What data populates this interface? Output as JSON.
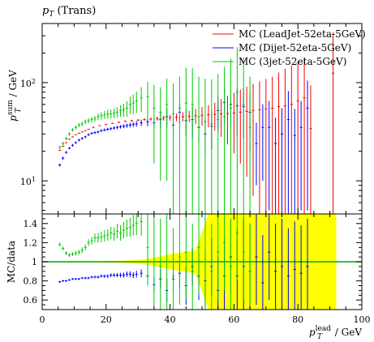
{
  "title": "p_T (Trans)",
  "title_parts": {
    "main": "p",
    "sub": "T",
    "tail": " (Trans)"
  },
  "chart_data": [
    {
      "type": "scatter",
      "panel": "main",
      "ylabel": "p_T^sum / GeV",
      "ylabel_parts": {
        "main": "p",
        "sup": "sum",
        "sub": "T",
        "tail": " / GeV"
      },
      "yscale": "log",
      "ylim": [
        4.6,
        400
      ],
      "xlim": [
        0,
        100
      ],
      "y_tick_labels": [
        "10^1",
        "10^2"
      ],
      "legend_position": "top-right",
      "series": [
        {
          "name": "MC (LeadJet-52eta-5GeV)",
          "color": "#ff0000",
          "x": [
            5.5,
            6.5,
            7.5,
            8.5,
            9.5,
            10.5,
            11.5,
            12.5,
            13.5,
            14.5,
            16,
            18,
            20,
            22,
            24,
            26,
            28,
            30,
            32,
            34,
            36,
            38,
            40,
            42,
            44,
            46,
            48,
            50,
            52,
            54,
            56,
            58,
            60,
            62,
            64,
            66,
            68,
            70,
            72,
            74,
            76,
            78,
            80,
            82,
            84,
            91
          ],
          "y": [
            20.5,
            22.5,
            24.5,
            26.5,
            28,
            29.5,
            30.5,
            31.5,
            32.5,
            33.5,
            35,
            36.5,
            37.5,
            38.5,
            39.5,
            40.5,
            41,
            41.5,
            42,
            42.5,
            43,
            43.5,
            44,
            44.5,
            45,
            45.5,
            46,
            46.5,
            47,
            47.5,
            48,
            48.5,
            49,
            50,
            51,
            52,
            53,
            54,
            55,
            57,
            58,
            60,
            65,
            70,
            34,
            125
          ],
          "err": [
            0.3,
            0.3,
            0.3,
            0.3,
            0.3,
            0.3,
            0.3,
            0.3,
            0.3,
            0.3,
            0.4,
            0.4,
            0.5,
            0.5,
            0.6,
            0.7,
            0.8,
            1,
            1.2,
            1.5,
            2,
            2.5,
            3,
            4,
            5,
            6,
            8,
            10,
            12,
            15,
            20,
            25,
            30,
            35,
            40,
            45,
            50,
            55,
            60,
            70,
            80,
            90,
            100,
            110,
            60,
            200
          ]
        },
        {
          "name": "MC (Dijet-52eta-5GeV)",
          "color": "#0000ff",
          "x": [
            5.5,
            6.5,
            7.5,
            8.5,
            9.5,
            10.5,
            11.5,
            12.5,
            13.5,
            14.5,
            15.5,
            16.5,
            17.5,
            18.5,
            19.5,
            20.5,
            21.5,
            22.5,
            23.5,
            24.5,
            25.5,
            26.5,
            27.5,
            28.5,
            29.5,
            31,
            33,
            35,
            37,
            39,
            41,
            43,
            45,
            47,
            49,
            51,
            53,
            55,
            57,
            59,
            61,
            63,
            65,
            67,
            69,
            71,
            73,
            75,
            77,
            79,
            81,
            83
          ],
          "y": [
            14.5,
            17,
            19.5,
            21.5,
            23,
            24.5,
            26,
            27,
            28,
            29.5,
            30.5,
            31,
            31.5,
            32.5,
            33,
            33.5,
            34,
            34.5,
            35,
            35.5,
            36,
            36.5,
            37,
            37.5,
            38,
            39,
            40,
            39,
            42,
            45,
            37,
            50,
            41,
            42,
            35,
            30,
            36,
            52,
            63,
            60,
            58,
            57,
            50,
            24,
            35,
            35,
            24,
            30,
            42,
            29,
            35,
            55
          ],
          "err": [
            0.5,
            0.6,
            0.6,
            0.6,
            0.7,
            0.7,
            0.8,
            0.8,
            0.8,
            0.9,
            0.9,
            1,
            1,
            1.1,
            1.1,
            1.2,
            1.2,
            1.3,
            1.4,
            1.5,
            1.6,
            1.8,
            2,
            2.2,
            2.5,
            3,
            4,
            5,
            8,
            10,
            8,
            12,
            12,
            15,
            10,
            12,
            15,
            20,
            25,
            25,
            30,
            30,
            30,
            15,
            25,
            30,
            20,
            25,
            40,
            25,
            30,
            50
          ]
        },
        {
          "name": "MC (3jet-52eta-5GeV)",
          "color": "#00cc00",
          "x": [
            5.5,
            6.5,
            7.5,
            8.5,
            9.5,
            10.5,
            11.5,
            12.5,
            13.5,
            14.5,
            15.5,
            16.5,
            17.5,
            18.5,
            19.5,
            20.5,
            21.5,
            22.5,
            23.5,
            24.5,
            25.5,
            26.5,
            27.5,
            28.5,
            29.5,
            31,
            33,
            35,
            37,
            39,
            41,
            43,
            45,
            47,
            49,
            51,
            53,
            55,
            57,
            59,
            61,
            63,
            65
          ],
          "y": [
            22,
            24,
            27,
            30,
            33,
            35,
            37,
            38,
            40,
            41,
            42,
            43,
            45,
            46,
            47,
            48,
            48,
            49,
            50,
            52,
            53,
            55,
            60,
            62,
            65,
            70,
            72,
            55,
            50,
            60,
            48,
            55,
            62,
            60,
            45,
            40,
            38,
            42,
            45,
            55,
            80,
            60,
            35
          ],
          "err": [
            0.8,
            1,
            1.1,
            1.2,
            1.4,
            1.6,
            1.8,
            2,
            2.2,
            2.5,
            2.8,
            3,
            3.5,
            4,
            4.5,
            5,
            5,
            5.5,
            6,
            7,
            8,
            10,
            12,
            14,
            16,
            20,
            30,
            40,
            40,
            50,
            50,
            60,
            80,
            80,
            70,
            70,
            70,
            80,
            100,
            120,
            150,
            120,
            80
          ]
        }
      ]
    },
    {
      "type": "scatter",
      "panel": "ratio",
      "ylabel": "MC/data",
      "xlabel": "p_T^lead / GeV",
      "xlabel_parts": {
        "main": "p",
        "sup": "lead",
        "sub": "T",
        "tail": " / GeV"
      },
      "xlim": [
        0,
        100
      ],
      "ylim": [
        0.5,
        1.5
      ],
      "x_ticks": [
        0,
        20,
        40,
        60,
        80,
        100
      ],
      "y_ticks": [
        0.6,
        0.8,
        1,
        1.2,
        1.4
      ],
      "reference_line": 1,
      "band_color": "#ffff00",
      "reference_line_color": "#00aa00",
      "band": {
        "x": [
          5,
          25,
          30,
          33,
          36,
          40,
          44,
          48,
          52,
          56,
          60,
          64,
          68,
          72,
          76,
          80,
          84,
          92
        ],
        "half_width": [
          0.005,
          0.01,
          0.02,
          0.03,
          0.05,
          0.08,
          0.1,
          0.12,
          0.5,
          0.5,
          0.5,
          0.5,
          0.5,
          0.5,
          0.5,
          0.5,
          0.5,
          0.5
        ]
      },
      "series": [
        {
          "color": "#0000ff",
          "x": [
            5.5,
            6.5,
            7.5,
            8.5,
            9.5,
            10.5,
            11.5,
            12.5,
            13.5,
            14.5,
            15.5,
            16.5,
            17.5,
            18.5,
            19.5,
            20.5,
            21.5,
            22.5,
            23.5,
            24.5,
            25.5,
            26.5,
            27.5,
            28.5,
            29.5,
            31,
            33,
            35,
            37,
            39,
            41,
            43,
            45,
            47,
            49,
            51,
            53,
            55,
            57,
            59,
            61,
            63,
            65,
            67,
            69,
            71,
            73,
            75,
            77,
            79,
            81,
            83
          ],
          "y": [
            0.79,
            0.8,
            0.8,
            0.81,
            0.82,
            0.82,
            0.82,
            0.83,
            0.83,
            0.83,
            0.84,
            0.84,
            0.84,
            0.85,
            0.85,
            0.85,
            0.86,
            0.86,
            0.86,
            0.86,
            0.86,
            0.87,
            0.87,
            0.86,
            0.87,
            0.88,
            0.85,
            0.76,
            0.82,
            0.7,
            0.82,
            0.88,
            0.75,
            0.95,
            0.85,
            0.8,
            0.95,
            0.7,
            0.85,
            1.05,
            0.85,
            0.95,
            0.9,
            1.05,
            0.78,
            1.1,
            0.9,
            0.95,
            0.85,
            0.92,
            0.88,
            0.95
          ],
          "err": [
            0.01,
            0.01,
            0.01,
            0.01,
            0.01,
            0.01,
            0.01,
            0.01,
            0.012,
            0.012,
            0.013,
            0.014,
            0.015,
            0.016,
            0.017,
            0.018,
            0.02,
            0.02,
            0.022,
            0.024,
            0.026,
            0.028,
            0.03,
            0.032,
            0.035,
            0.04,
            0.06,
            0.08,
            0.1,
            0.12,
            0.15,
            0.15,
            0.2,
            0.2,
            0.25,
            0.3,
            0.3,
            0.35,
            0.4,
            0.4,
            0.5,
            0.5,
            0.5,
            0.5,
            0.5,
            0.5,
            0.5,
            0.5,
            0.5,
            0.5,
            0.5,
            0.5
          ]
        },
        {
          "color": "#00cc00",
          "x": [
            5.5,
            6.5,
            7.5,
            8.5,
            9.5,
            10.5,
            11.5,
            12.5,
            13.5,
            14.5,
            15.5,
            16.5,
            17.5,
            18.5,
            19.5,
            20.5,
            21.5,
            22.5,
            23.5,
            24.5,
            25.5,
            26.5,
            27.5,
            28.5,
            29.5,
            31,
            33,
            35,
            37,
            39,
            41,
            43,
            45,
            47,
            49,
            51,
            53,
            55,
            57,
            59,
            61,
            63,
            65
          ],
          "y": [
            1.18,
            1.14,
            1.09,
            1.07,
            1.08,
            1.09,
            1.1,
            1.12,
            1.15,
            1.2,
            1.22,
            1.25,
            1.25,
            1.26,
            1.27,
            1.28,
            1.3,
            1.29,
            1.32,
            1.3,
            1.33,
            1.35,
            1.36,
            1.38,
            1.4,
            1.42,
            1.15,
            1.0,
            0.95,
            1.0,
            0.85,
            1.05,
            1.1,
            0.9,
            1.15,
            1.0,
            0.9,
            1.1,
            1.2,
            0.95,
            1.3,
            1.1,
            0.9
          ],
          "err": [
            0.02,
            0.02,
            0.02,
            0.02,
            0.02,
            0.025,
            0.025,
            0.03,
            0.03,
            0.035,
            0.04,
            0.045,
            0.05,
            0.055,
            0.06,
            0.06,
            0.065,
            0.07,
            0.075,
            0.08,
            0.085,
            0.09,
            0.1,
            0.11,
            0.12,
            0.15,
            0.4,
            0.5,
            0.5,
            0.5,
            0.5,
            0.5,
            0.5,
            0.5,
            0.5,
            0.5,
            0.5,
            0.5,
            0.5,
            0.5,
            0.5,
            0.5,
            0.5
          ]
        }
      ]
    }
  ]
}
